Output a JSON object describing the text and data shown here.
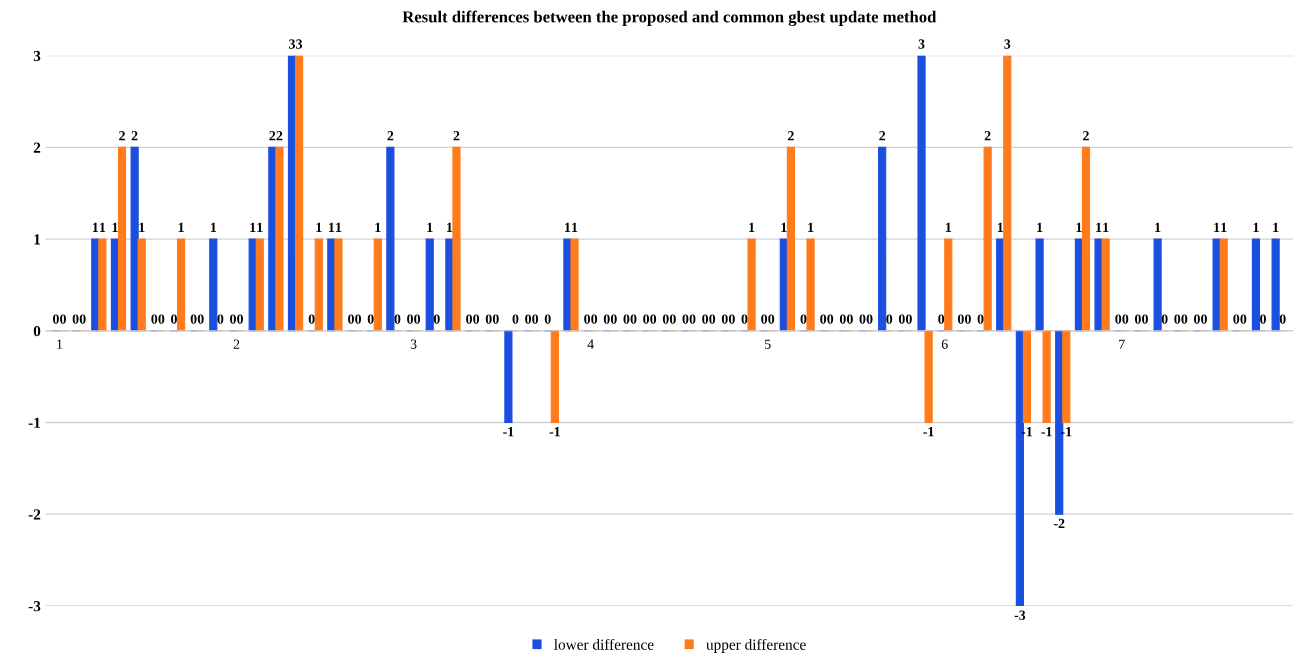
{
  "chart_data": {
    "type": "bar",
    "title": "Result differences between the proposed and common gbest update method",
    "categories": [
      "1",
      null,
      null,
      null,
      null,
      null,
      null,
      null,
      null,
      "2",
      null,
      null,
      null,
      null,
      null,
      null,
      null,
      null,
      "3",
      null,
      null,
      null,
      null,
      null,
      null,
      null,
      null,
      "4",
      null,
      null,
      null,
      null,
      null,
      null,
      null,
      null,
      "5",
      null,
      null,
      null,
      null,
      null,
      null,
      null,
      null,
      "6",
      null,
      null,
      null,
      null,
      null,
      null,
      null,
      null,
      "7",
      null,
      null,
      null,
      null,
      null,
      null,
      null,
      null
    ],
    "series": [
      {
        "name": "lower difference",
        "color": "#1a4fe0",
        "values": [
          0,
          0,
          1,
          1,
          2,
          0,
          0,
          0,
          1,
          0,
          1,
          2,
          3,
          0,
          1,
          0,
          0,
          2,
          0,
          1,
          1,
          0,
          0,
          -1,
          0,
          0,
          1,
          0,
          0,
          0,
          0,
          0,
          0,
          0,
          0,
          0,
          0,
          1,
          0,
          0,
          0,
          0,
          2,
          0,
          3,
          0,
          0,
          0,
          1,
          -3,
          1,
          -2,
          1,
          1,
          0,
          0,
          1,
          0,
          0,
          1,
          0,
          1,
          1
        ]
      },
      {
        "name": "upper difference",
        "color": "#ff7b1c",
        "values": [
          0,
          0,
          1,
          2,
          1,
          0,
          1,
          0,
          0,
          0,
          1,
          2,
          3,
          1,
          1,
          0,
          1,
          0,
          0,
          0,
          2,
          0,
          0,
          0,
          0,
          -1,
          1,
          0,
          0,
          0,
          0,
          0,
          0,
          0,
          0,
          1,
          0,
          2,
          1,
          0,
          0,
          0,
          0,
          0,
          -1,
          1,
          0,
          2,
          3,
          -1,
          -1,
          -1,
          2,
          1,
          0,
          0,
          0,
          0,
          0,
          1,
          0,
          0,
          0
        ]
      }
    ],
    "ylim": [
      -3,
      3
    ],
    "yticks": [
      -3,
      -2,
      -1,
      0,
      1,
      2,
      3
    ],
    "grid": "y",
    "legend": "bottom",
    "data_labels": true
  }
}
